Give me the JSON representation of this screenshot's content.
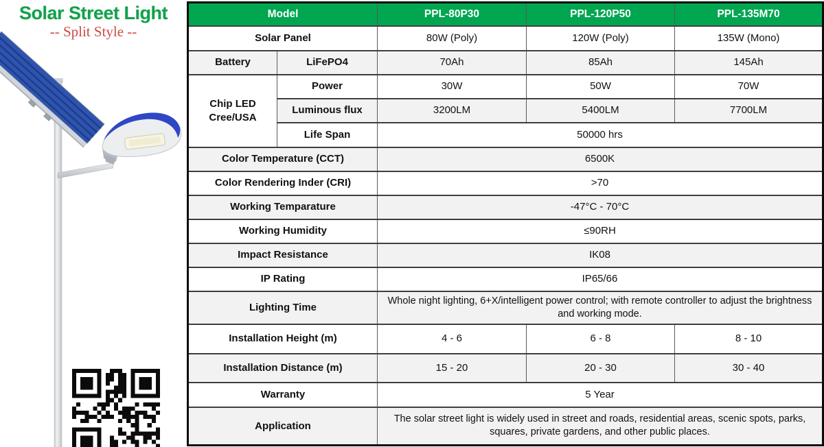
{
  "brand": {
    "title": "Solar Street Light",
    "subtitle": "-- Split Style --"
  },
  "colors": {
    "title_green": "#12a24b",
    "subtitle_red": "#cb4a47",
    "header_bg": "#00a650",
    "header_text": "#ffffff",
    "row_alt_bg": "#f2f2f2",
    "panel_blue": "#2e54ad",
    "lamp_blue": "#2f47c5"
  },
  "icons": {
    "product_image": "solar-street-light-render",
    "qr_code": "qr-code"
  },
  "table": {
    "header": {
      "model": "Model",
      "models": [
        "PPL-80P30",
        "PPL-120P50",
        "PPL-135M70"
      ]
    },
    "solar_panel": {
      "label": "Solar Panel",
      "values": [
        "80W (Poly)",
        "120W (Poly)",
        "135W (Mono)"
      ]
    },
    "battery": {
      "label": "Battery",
      "type": "LiFePO4",
      "values": [
        "70Ah",
        "85Ah",
        "145Ah"
      ]
    },
    "chip_led": {
      "label": "Chip LED Cree/USA",
      "power": {
        "label": "Power",
        "values": [
          "30W",
          "50W",
          "70W"
        ]
      },
      "luminous_flux": {
        "label": "Luminous flux",
        "values": [
          "3200LM",
          "5400LM",
          "7700LM"
        ]
      },
      "life_span": {
        "label": "Life Span",
        "value": "50000 hrs"
      }
    },
    "color_temperature": {
      "label": "Color Temperature (CCT)",
      "value": "6500K"
    },
    "cri": {
      "label": "Color Rendering Inder (CRI)",
      "value": ">70"
    },
    "working_temperature": {
      "label": "Working Temparature",
      "value": "-47°C - 70°C"
    },
    "working_humidity": {
      "label": "Working Humidity",
      "value": "≤90RH"
    },
    "impact_resistance": {
      "label": "Impact Resistance",
      "value": "IK08"
    },
    "ip_rating": {
      "label": "IP Rating",
      "value": "IP65/66"
    },
    "lighting_time": {
      "label": "Lighting Time",
      "value": "Whole night lighting, 6+X/intelligent power control; with remote controller to adjust the brightness and working mode."
    },
    "installation_height": {
      "label": "Installation Height (m)",
      "values": [
        "4 - 6",
        "6 - 8",
        "8 - 10"
      ]
    },
    "installation_distance": {
      "label": "Installation Distance (m)",
      "values": [
        "15 - 20",
        "20 - 30",
        "30 - 40"
      ]
    },
    "warranty": {
      "label": "Warranty",
      "value": "5 Year"
    },
    "application": {
      "label": "Application",
      "value": "The solar street light is widely used in street and roads, residential areas, scenic spots, parks, squares, private gardens, and other public places."
    }
  }
}
